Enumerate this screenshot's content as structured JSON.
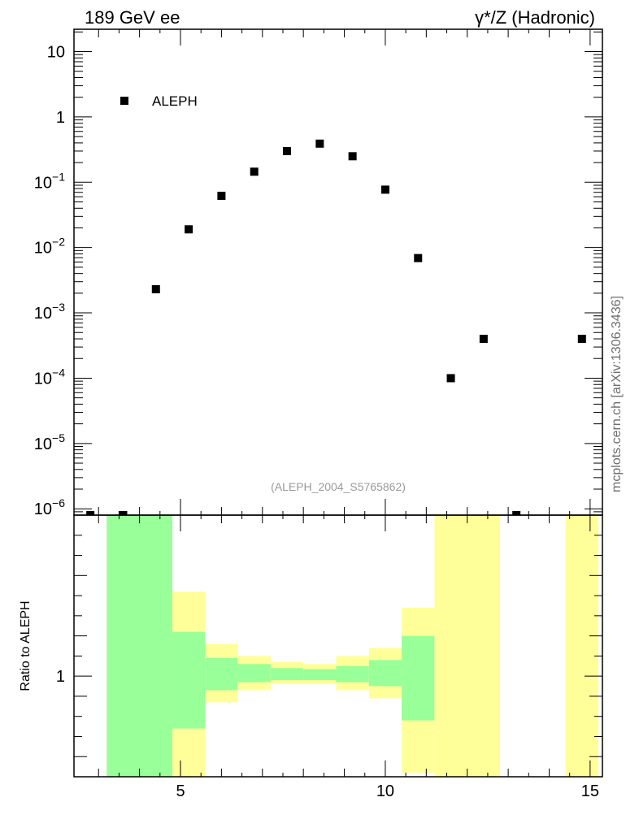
{
  "header": {
    "left": "189 GeV ee",
    "right": "γ*/Z (Hadronic)"
  },
  "watermark": "mcplots.cern.ch [arXiv:1306.3436]",
  "analysis_id": "(ALEPH_2004_S5765862)",
  "chart_data": [
    {
      "type": "scatter",
      "yscale": "log",
      "ylim": [
        8e-07,
        22
      ],
      "xlim": [
        2.4,
        15.3
      ],
      "legend": {
        "label": "ALEPH",
        "placement": "top-left"
      },
      "y_tick_labels": [
        {
          "v": 10,
          "base": "10",
          "exp": ""
        },
        {
          "v": 1,
          "base": "1",
          "exp": ""
        },
        {
          "v": 0.1,
          "base": "10",
          "exp": "−1"
        },
        {
          "v": 0.01,
          "base": "10",
          "exp": "−2"
        },
        {
          "v": 0.001,
          "base": "10",
          "exp": "−3"
        },
        {
          "v": 0.0001,
          "base": "10",
          "exp": "−4"
        },
        {
          "v": 1e-05,
          "base": "10",
          "exp": "−5"
        },
        {
          "v": 1e-06,
          "base": "10",
          "exp": "−6"
        }
      ],
      "series": [
        {
          "name": "ALEPH",
          "x": [
            2.8,
            3.6,
            4.4,
            5.2,
            6.0,
            6.8,
            7.6,
            8.4,
            9.2,
            10.0,
            10.8,
            11.6,
            12.4,
            13.2,
            14.8
          ],
          "y": [
            8e-07,
            8e-07,
            0.0023,
            0.019,
            0.062,
            0.145,
            0.3,
            0.39,
            0.25,
            0.077,
            0.0069,
            0.0001,
            0.0004,
            8e-07,
            0.0004
          ]
        }
      ]
    },
    {
      "type": "area",
      "ylabel": "Ratio to ALEPH",
      "xlim": [
        2.4,
        15.3
      ],
      "ylim": [
        0.5,
        1.8
      ],
      "x_ticks": [
        5,
        10,
        15
      ],
      "y_ticks_labeled": [
        1
      ],
      "bands": [
        {
          "x0": 3.2,
          "x1": 4.8,
          "yellow": [
            0.5,
            1.8
          ],
          "green": [
            0.5,
            1.8
          ]
        },
        {
          "x0": 4.8,
          "x1": 5.6,
          "yellow": [
            0.5,
            1.42
          ],
          "green": [
            0.74,
            1.22
          ]
        },
        {
          "x0": 5.6,
          "x1": 6.4,
          "yellow": [
            0.87,
            1.16
          ],
          "green": [
            0.93,
            1.09
          ]
        },
        {
          "x0": 6.4,
          "x1": 7.2,
          "yellow": [
            0.93,
            1.1
          ],
          "green": [
            0.97,
            1.06
          ]
        },
        {
          "x0": 7.2,
          "x1": 8.0,
          "yellow": [
            0.96,
            1.07
          ],
          "green": [
            0.98,
            1.04
          ]
        },
        {
          "x0": 8.0,
          "x1": 8.8,
          "yellow": [
            0.96,
            1.06
          ],
          "green": [
            0.98,
            1.035
          ]
        },
        {
          "x0": 8.8,
          "x1": 9.6,
          "yellow": [
            0.93,
            1.1
          ],
          "green": [
            0.97,
            1.05
          ]
        },
        {
          "x0": 9.6,
          "x1": 10.4,
          "yellow": [
            0.89,
            1.14
          ],
          "green": [
            0.95,
            1.08
          ]
        },
        {
          "x0": 10.4,
          "x1": 11.2,
          "yellow": [
            0.52,
            1.34
          ],
          "green": [
            0.78,
            1.2
          ]
        },
        {
          "x0": 11.2,
          "x1": 12.8,
          "yellow": [
            0.5,
            1.8
          ],
          "green": null
        },
        {
          "x0": 14.4,
          "x1": 15.2,
          "yellow": [
            0.5,
            1.8
          ],
          "green": null
        }
      ]
    }
  ]
}
